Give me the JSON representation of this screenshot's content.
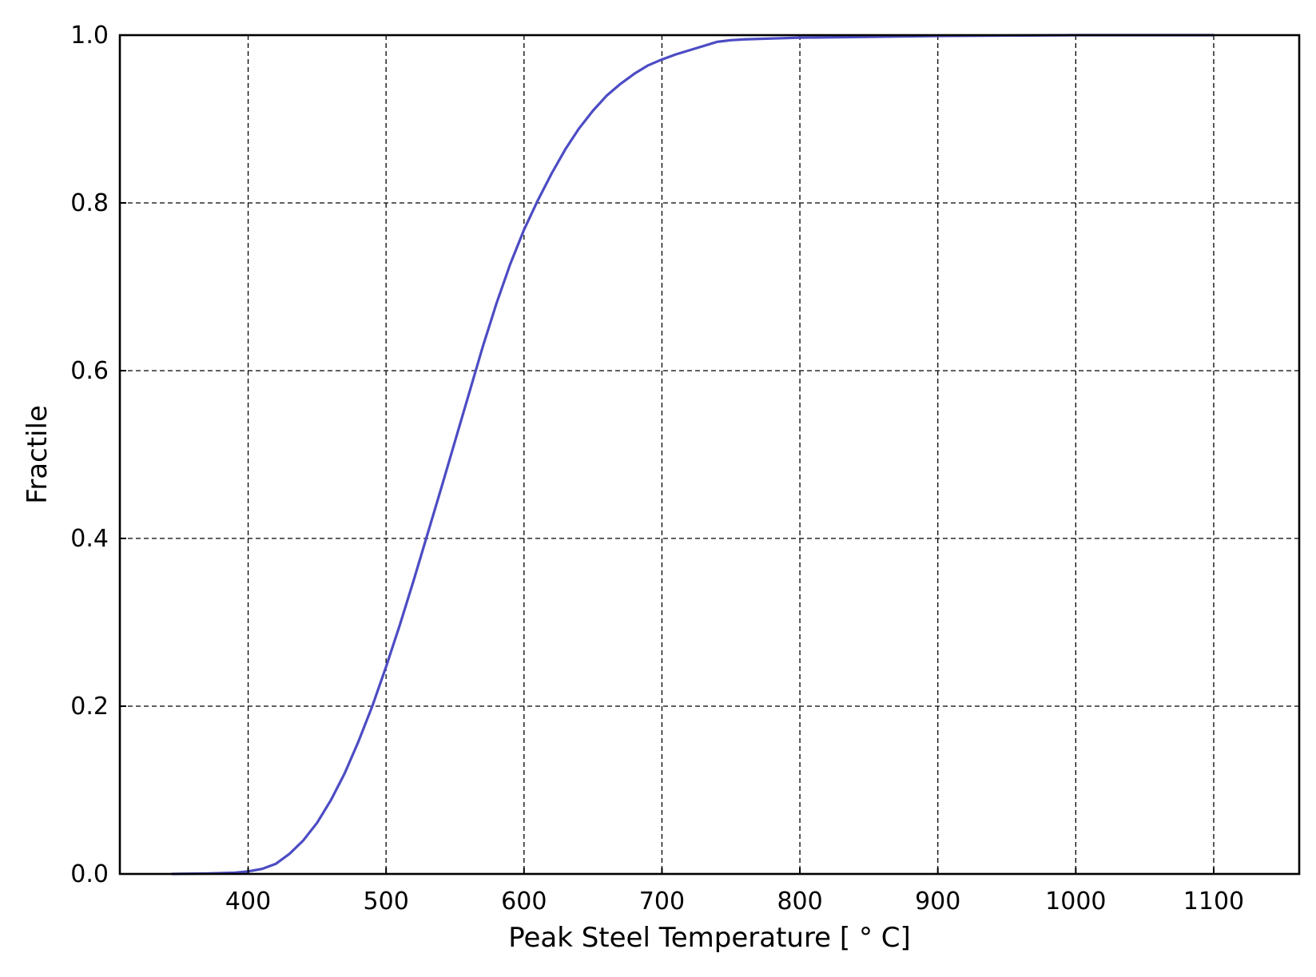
{
  "colors": {
    "background": "#ffffff",
    "axes": "#000000",
    "grid": "#000000",
    "series": "#4c4cc4"
  },
  "chart_data": {
    "type": "line",
    "title": "",
    "xlabel": "Peak Steel Temperature [$^\\circ$C]",
    "xlabel_display": "Peak Steel Temperature [ ° C]",
    "ylabel": "Fractile",
    "xlim": [
      307,
      1162
    ],
    "ylim": [
      0.0,
      1.0
    ],
    "x_ticks": [
      400,
      500,
      600,
      700,
      800,
      900,
      1000,
      1100
    ],
    "x_tick_labels": [
      "400",
      "500",
      "600",
      "700",
      "800",
      "900",
      "1000",
      "1100"
    ],
    "y_ticks": [
      0.0,
      0.2,
      0.4,
      0.6,
      0.8,
      1.0
    ],
    "y_tick_labels": [
      "0.0",
      "0.2",
      "0.4",
      "0.6",
      "0.8",
      "1.0"
    ],
    "grid": true,
    "grid_style": "dashed",
    "legend": "none",
    "series": [
      {
        "color": "#4c4cc4",
        "x": [
          345,
          370,
          390,
          400,
          410,
          420,
          430,
          440,
          450,
          460,
          470,
          480,
          490,
          500,
          510,
          520,
          530,
          540,
          550,
          560,
          570,
          580,
          590,
          600,
          610,
          620,
          630,
          640,
          650,
          660,
          670,
          680,
          690,
          700,
          710,
          720,
          730,
          740,
          750,
          760,
          780,
          800,
          850,
          900,
          1000,
          1100
        ],
        "y": [
          0.0,
          0.0005,
          0.0015,
          0.003,
          0.006,
          0.012,
          0.024,
          0.04,
          0.061,
          0.088,
          0.12,
          0.158,
          0.2,
          0.247,
          0.297,
          0.35,
          0.405,
          0.46,
          0.516,
          0.572,
          0.628,
          0.68,
          0.727,
          0.768,
          0.803,
          0.835,
          0.864,
          0.889,
          0.91,
          0.928,
          0.942,
          0.954,
          0.964,
          0.971,
          0.977,
          0.982,
          0.987,
          0.992,
          0.994,
          0.995,
          0.996,
          0.997,
          0.998,
          0.999,
          1.0,
          1.0
        ]
      }
    ]
  }
}
